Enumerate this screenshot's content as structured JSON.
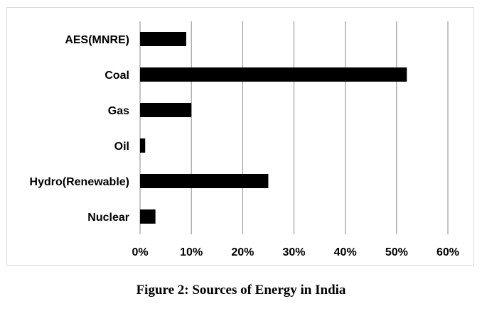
{
  "caption": "Figure 2: Sources of Energy in India",
  "chart_data": {
    "type": "bar",
    "orientation": "horizontal",
    "categories": [
      "AES(MNRE)",
      "Coal",
      "Gas",
      "Oil",
      "Hydro(Renewable)",
      "Nuclear"
    ],
    "values": [
      0.09,
      0.52,
      0.1,
      0.01,
      0.25,
      0.03
    ],
    "xlim": [
      0,
      0.6
    ],
    "xticks": [
      0,
      0.1,
      0.2,
      0.3,
      0.4,
      0.5,
      0.6
    ],
    "xtick_labels": [
      "0%",
      "10%",
      "20%",
      "30%",
      "40%",
      "50%",
      "60%"
    ],
    "grid": true,
    "bar_color": "#000000",
    "grid_color": "#888888"
  }
}
